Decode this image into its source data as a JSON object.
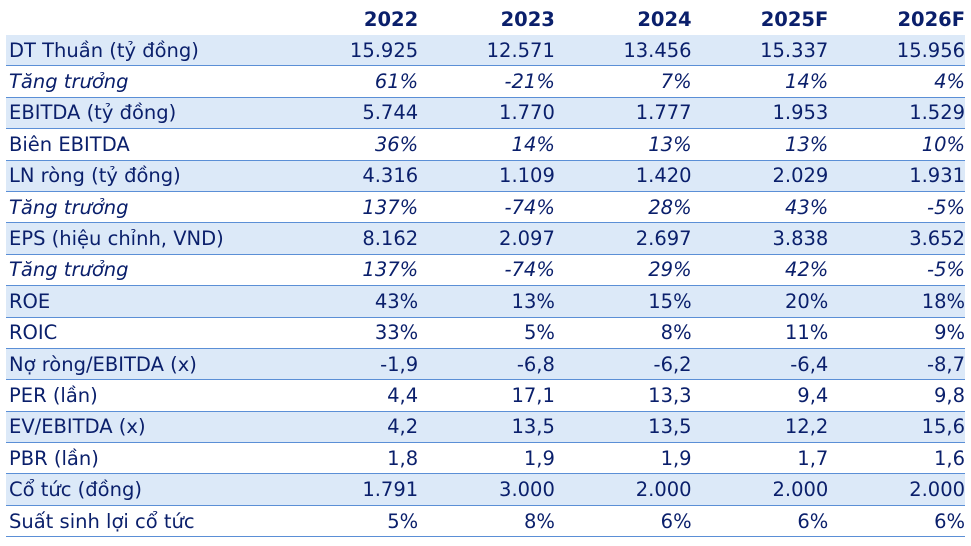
{
  "columns": [
    "2022",
    "2023",
    "2024",
    "2025F",
    "2026F"
  ],
  "rows": [
    {
      "label": "DT Thuần (tỷ đồng)",
      "values": [
        "15.925",
        "12.571",
        "13.456",
        "15.337",
        "15.956"
      ],
      "italic": false,
      "shaded": true
    },
    {
      "label": "Tăng trưởng",
      "values": [
        "61%",
        "-21%",
        "7%",
        "14%",
        "4%"
      ],
      "italic": true,
      "shaded": false
    },
    {
      "label": "EBITDA (tỷ đồng)",
      "values": [
        "5.744",
        "1.770",
        "1.777",
        "1.953",
        "1.529"
      ],
      "italic": false,
      "shaded": true
    },
    {
      "label": "Biên EBITDA",
      "values": [
        "36%",
        "14%",
        "13%",
        "13%",
        "10%"
      ],
      "italic": false,
      "italic_values": true,
      "shaded": false
    },
    {
      "label": "LN ròng (tỷ đồng)",
      "values": [
        "4.316",
        "1.109",
        "1.420",
        "2.029",
        "1.931"
      ],
      "italic": false,
      "shaded": true
    },
    {
      "label": "Tăng trưởng",
      "values": [
        "137%",
        "-74%",
        "28%",
        "43%",
        "-5%"
      ],
      "italic": true,
      "shaded": false
    },
    {
      "label": "EPS (hiệu chỉnh, VND)",
      "values": [
        "8.162",
        "2.097",
        "2.697",
        "3.838",
        "3.652"
      ],
      "italic": false,
      "shaded": true
    },
    {
      "label": "Tăng trưởng",
      "values": [
        "137%",
        "-74%",
        "29%",
        "42%",
        "-5%"
      ],
      "italic": true,
      "shaded": false
    },
    {
      "label": "ROE",
      "values": [
        "43%",
        "13%",
        "15%",
        "20%",
        "18%"
      ],
      "italic": false,
      "shaded": true
    },
    {
      "label": "ROIC",
      "values": [
        "33%",
        "5%",
        "8%",
        "11%",
        "9%"
      ],
      "italic": false,
      "shaded": false
    },
    {
      "label": "Nợ ròng/EBITDA (x)",
      "values": [
        "-1,9",
        "-6,8",
        "-6,2",
        "-6,4",
        "-8,7"
      ],
      "italic": false,
      "shaded": true
    },
    {
      "label": "PER (lần)",
      "values": [
        "4,4",
        "17,1",
        "13,3",
        "9,4",
        "9,8"
      ],
      "italic": false,
      "shaded": false
    },
    {
      "label": "EV/EBITDA (x)",
      "values": [
        "4,2",
        "13,5",
        "13,5",
        "12,2",
        "15,6"
      ],
      "italic": false,
      "shaded": true
    },
    {
      "label": "PBR (lần)",
      "values": [
        "1,8",
        "1,9",
        "1,9",
        "1,7",
        "1,6"
      ],
      "italic": false,
      "shaded": false
    },
    {
      "label": "Cổ tức (đồng)",
      "values": [
        "1.791",
        "3.000",
        "2.000",
        "2.000",
        "2.000"
      ],
      "italic": false,
      "shaded": true
    },
    {
      "label": "Suất sinh lợi cổ tức",
      "values": [
        "5%",
        "8%",
        "6%",
        "6%",
        "6%"
      ],
      "italic": false,
      "shaded": false
    }
  ]
}
